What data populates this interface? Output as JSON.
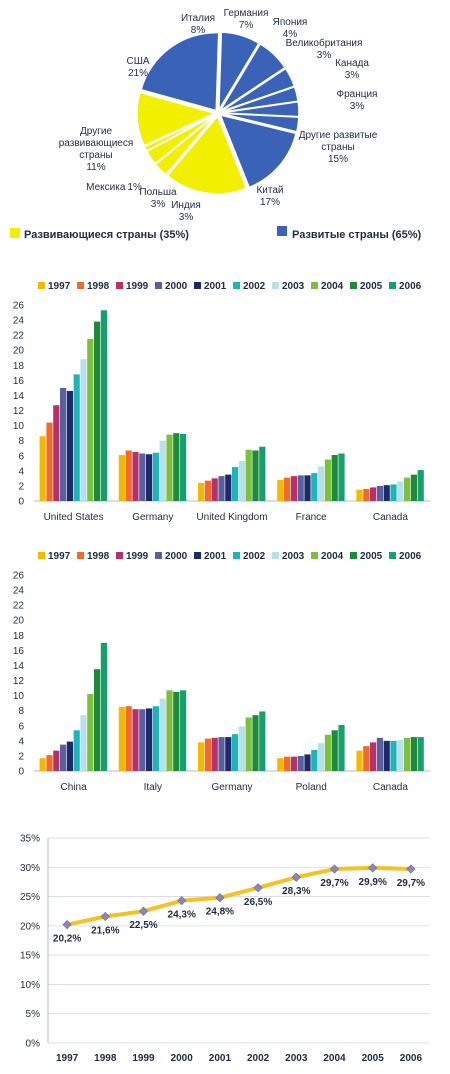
{
  "chart_data": [
    {
      "type": "pie",
      "slices": [
        {
          "label": "США",
          "pct": "21%",
          "value": 21,
          "group": "dev"
        },
        {
          "label": "Италия",
          "pct": "8%",
          "value": 8,
          "group": "dev"
        },
        {
          "label": "Германия",
          "pct": "7%",
          "value": 7,
          "group": "dev"
        },
        {
          "label": "Япония",
          "pct": "4%",
          "value": 4,
          "group": "dev"
        },
        {
          "label": "Великобритания",
          "pct": "3%",
          "value": 3,
          "group": "dev"
        },
        {
          "label": "Канада",
          "pct": "3%",
          "value": 3,
          "group": "dev"
        },
        {
          "label": "Франция",
          "pct": "3%",
          "value": 3,
          "group": "dev"
        },
        {
          "label": "Другие развитые страны",
          "pct": "15%",
          "value": 15,
          "group": "dev"
        },
        {
          "label": "Китай",
          "pct": "17%",
          "value": 17,
          "group": "devg"
        },
        {
          "label": "Индия",
          "pct": "3%",
          "value": 3,
          "group": "devg"
        },
        {
          "label": "Польша",
          "pct": "3%",
          "value": 3,
          "group": "devg"
        },
        {
          "label": "Мексика",
          "pct": "1%",
          "value": 1,
          "group": "devg"
        },
        {
          "label": "Другие развивающиеся страны",
          "pct": "11%",
          "value": 11,
          "group": "devg"
        }
      ],
      "legend": [
        {
          "label": "Развивающиеся страны (35%)",
          "color": "#f2f000"
        },
        {
          "label": "Развитые страны (65%)",
          "color": "#3a63b8"
        }
      ]
    },
    {
      "type": "bar",
      "categories": [
        "United States",
        "Germany",
        "United Kingdom",
        "France",
        "Canada"
      ],
      "yticks": [
        "0",
        "2",
        "4",
        "6",
        "8",
        "10",
        "12",
        "14",
        "16",
        "18",
        "20",
        "22",
        "24",
        "26"
      ],
      "ylim": [
        0,
        26
      ],
      "series": [
        {
          "name": "1997",
          "values": [
            8.6,
            6.1,
            2.4,
            2.8,
            1.5
          ]
        },
        {
          "name": "1998",
          "values": [
            10.4,
            6.7,
            2.7,
            3.1,
            1.6
          ]
        },
        {
          "name": "1999",
          "values": [
            12.7,
            6.5,
            3.0,
            3.3,
            1.8
          ]
        },
        {
          "name": "2000",
          "values": [
            15.0,
            6.3,
            3.3,
            3.4,
            2.0
          ]
        },
        {
          "name": "2001",
          "values": [
            14.6,
            6.2,
            3.5,
            3.4,
            2.1
          ]
        },
        {
          "name": "2002",
          "values": [
            16.8,
            6.4,
            4.5,
            3.7,
            2.2
          ]
        },
        {
          "name": "2003",
          "values": [
            18.8,
            8.0,
            5.3,
            4.6,
            2.6
          ]
        },
        {
          "name": "2004",
          "values": [
            21.5,
            8.8,
            6.8,
            5.5,
            3.1
          ]
        },
        {
          "name": "2005",
          "values": [
            23.8,
            9.0,
            6.7,
            6.1,
            3.5
          ]
        },
        {
          "name": "2006",
          "values": [
            25.3,
            8.9,
            7.2,
            6.3,
            4.1
          ]
        }
      ]
    },
    {
      "type": "bar",
      "categories": [
        "China",
        "Italy",
        "Germany",
        "Poland",
        "Canada"
      ],
      "yticks": [
        "0",
        "2",
        "4",
        "6",
        "8",
        "10",
        "12",
        "14",
        "16",
        "18",
        "20",
        "22",
        "24",
        "26"
      ],
      "ylim": [
        0,
        26
      ],
      "series": [
        {
          "name": "1997",
          "values": [
            1.7,
            8.5,
            3.8,
            1.7,
            2.7
          ]
        },
        {
          "name": "1998",
          "values": [
            2.1,
            8.6,
            4.3,
            1.9,
            3.3
          ]
        },
        {
          "name": "1999",
          "values": [
            2.7,
            8.2,
            4.4,
            1.9,
            3.8
          ]
        },
        {
          "name": "2000",
          "values": [
            3.5,
            8.2,
            4.5,
            2.0,
            4.4
          ]
        },
        {
          "name": "2001",
          "values": [
            3.9,
            8.3,
            4.5,
            2.2,
            4.0
          ]
        },
        {
          "name": "2002",
          "values": [
            5.4,
            8.6,
            4.9,
            2.8,
            4.0
          ]
        },
        {
          "name": "2003",
          "values": [
            7.4,
            9.6,
            5.9,
            3.7,
            4.1
          ]
        },
        {
          "name": "2004",
          "values": [
            10.2,
            10.7,
            7.1,
            4.8,
            4.4
          ]
        },
        {
          "name": "2005",
          "values": [
            13.5,
            10.5,
            7.4,
            5.4,
            4.5
          ]
        },
        {
          "name": "2006",
          "values": [
            17.0,
            10.7,
            7.9,
            6.1,
            4.5
          ]
        }
      ]
    },
    {
      "type": "line",
      "x": [
        "1997",
        "1998",
        "1999",
        "2000",
        "2001",
        "2002",
        "2003",
        "2004",
        "2005",
        "2006"
      ],
      "values": [
        20.2,
        21.6,
        22.5,
        24.3,
        24.8,
        26.5,
        28.3,
        29.7,
        29.9,
        29.7
      ],
      "labels": [
        "20,2%",
        "21,6%",
        "22,5%",
        "24,3%",
        "24,8%",
        "26,5%",
        "28,3%",
        "29,7%",
        "29,9%",
        "29,7%"
      ],
      "yticks": [
        "0%",
        "5%",
        "10%",
        "15%",
        "20%",
        "25%",
        "30%",
        "35%"
      ],
      "ylim": [
        0,
        35
      ]
    }
  ],
  "colors": {
    "series": [
      "#f5b800",
      "#ef6a2b",
      "#b5316a",
      "#5a5f9e",
      "#1c2a6b",
      "#1fb5b8",
      "#b8e0ea",
      "#7dbf3e",
      "#1f8a3a",
      "#17a06e"
    ],
    "developed": "#3a63b8",
    "developing": "#f2f000",
    "line": "#f5c125",
    "marker": "#8a87b5",
    "grid": "#d4d8e0"
  }
}
